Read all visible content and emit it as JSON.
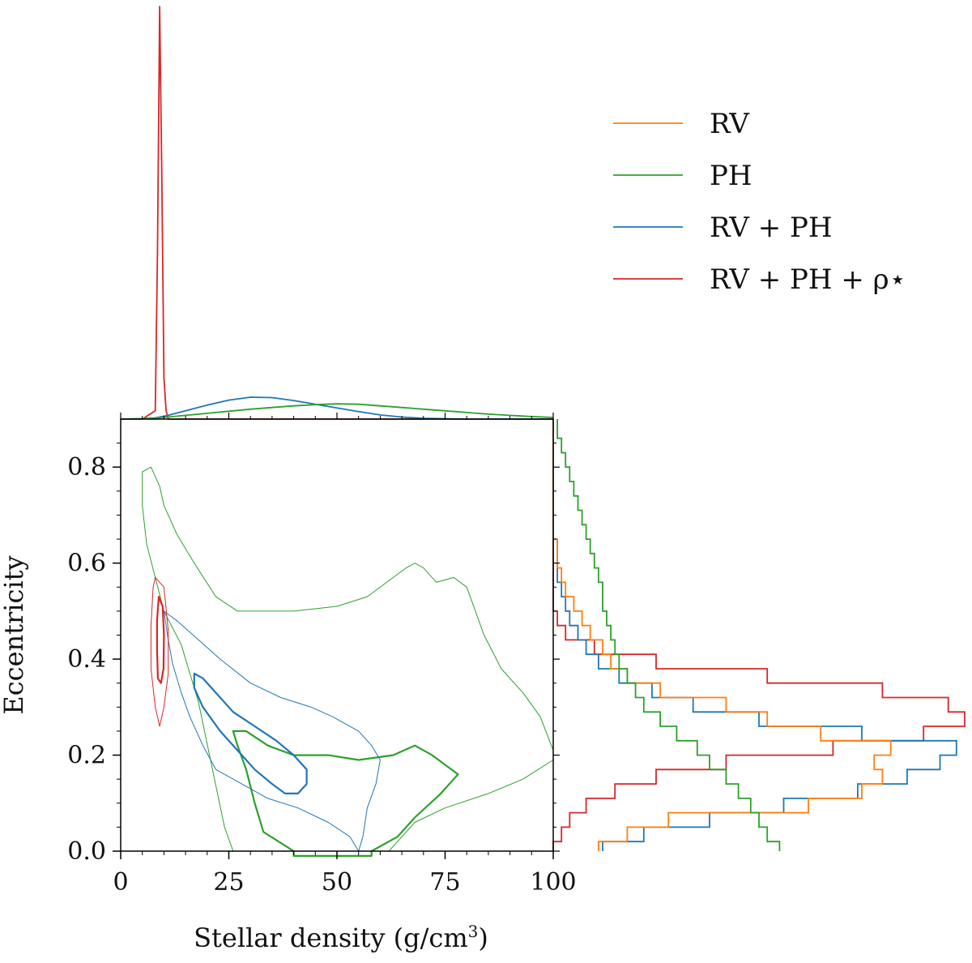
{
  "chart_data": {
    "type": "line",
    "main_panel": {
      "kind": "contour",
      "xlabel": "Stellar density (g/cm",
      "xlabel_sup": "3",
      "xlabel_tail": ")",
      "ylabel": "Eccentricity",
      "xlim": [
        0,
        100
      ],
      "ylim": [
        0,
        0.9
      ],
      "xticks": [
        0,
        25,
        50,
        75,
        100
      ],
      "xtick_labels": [
        "0",
        "25",
        "50",
        "75",
        "100"
      ],
      "yticks": [
        0.0,
        0.2,
        0.4,
        0.6,
        0.8
      ],
      "ytick_labels": [
        "0.0",
        "0.2",
        "0.4",
        "0.6",
        "0.8"
      ],
      "contours": [
        {
          "series": "PH",
          "level": "outer",
          "color": "#2ca02c",
          "points": [
            [
              5,
              0.79
            ],
            [
              7,
              0.8
            ],
            [
              9,
              0.76
            ],
            [
              10,
              0.72
            ],
            [
              13,
              0.66
            ],
            [
              17,
              0.6
            ],
            [
              22,
              0.53
            ],
            [
              27,
              0.5
            ],
            [
              33,
              0.5
            ],
            [
              40,
              0.5
            ],
            [
              50,
              0.51
            ],
            [
              57,
              0.53
            ],
            [
              63,
              0.57
            ],
            [
              66,
              0.59
            ],
            [
              68,
              0.6
            ],
            [
              70,
              0.59
            ],
            [
              73,
              0.56
            ],
            [
              77,
              0.57
            ],
            [
              80,
              0.55
            ],
            [
              84,
              0.45
            ],
            [
              88,
              0.38
            ],
            [
              93,
              0.33
            ],
            [
              97,
              0.28
            ],
            [
              100,
              0.21
            ],
            [
              100,
              0.19
            ],
            [
              93,
              0.15
            ],
            [
              85,
              0.12
            ],
            [
              75,
              0.09
            ],
            [
              68,
              0.06
            ],
            [
              64,
              0.02
            ],
            [
              62,
              0.0
            ],
            [
              50,
              0.0
            ],
            [
              26,
              0.0
            ],
            [
              24,
              0.05
            ],
            [
              21,
              0.18
            ],
            [
              18,
              0.31
            ],
            [
              14,
              0.43
            ],
            [
              10,
              0.5
            ],
            [
              6,
              0.64
            ],
            [
              5,
              0.72
            ],
            [
              5,
              0.79
            ]
          ]
        },
        {
          "series": "PH",
          "level": "inner",
          "color": "#2ca02c",
          "points": [
            [
              26,
              0.25
            ],
            [
              29,
              0.25
            ],
            [
              34,
              0.22
            ],
            [
              40,
              0.2
            ],
            [
              48,
              0.2
            ],
            [
              55,
              0.19
            ],
            [
              63,
              0.2
            ],
            [
              68,
              0.22
            ],
            [
              72,
              0.2
            ],
            [
              78,
              0.16
            ],
            [
              74,
              0.12
            ],
            [
              68,
              0.07
            ],
            [
              64,
              0.03
            ],
            [
              58,
              0.0
            ],
            [
              58,
              -0.01
            ],
            [
              40,
              -0.01
            ],
            [
              40,
              0.0
            ],
            [
              33,
              0.04
            ],
            [
              31,
              0.1
            ],
            [
              29,
              0.17
            ],
            [
              27,
              0.22
            ],
            [
              26,
              0.25
            ]
          ]
        },
        {
          "series": "RV + PH",
          "level": "outer",
          "color": "#1f77b4",
          "points": [
            [
              10,
              0.5
            ],
            [
              13,
              0.48
            ],
            [
              18,
              0.44
            ],
            [
              23,
              0.4
            ],
            [
              30,
              0.35
            ],
            [
              37,
              0.32
            ],
            [
              44,
              0.3
            ],
            [
              49,
              0.28
            ],
            [
              55,
              0.25
            ],
            [
              58,
              0.22
            ],
            [
              60,
              0.19
            ],
            [
              59,
              0.14
            ],
            [
              57,
              0.09
            ],
            [
              56,
              0.03
            ],
            [
              55,
              0.0
            ],
            [
              53,
              0.03
            ],
            [
              48,
              0.06
            ],
            [
              41,
              0.09
            ],
            [
              34,
              0.11
            ],
            [
              28,
              0.14
            ],
            [
              22,
              0.17
            ],
            [
              19,
              0.22
            ],
            [
              16,
              0.28
            ],
            [
              14,
              0.33
            ],
            [
              12,
              0.39
            ],
            [
              11,
              0.44
            ],
            [
              10,
              0.5
            ]
          ]
        },
        {
          "series": "RV + PH",
          "level": "inner",
          "color": "#1f77b4",
          "points": [
            [
              17,
              0.37
            ],
            [
              19,
              0.36
            ],
            [
              22,
              0.33
            ],
            [
              26,
              0.29
            ],
            [
              31,
              0.26
            ],
            [
              36,
              0.23
            ],
            [
              40,
              0.2
            ],
            [
              43,
              0.17
            ],
            [
              43,
              0.14
            ],
            [
              41,
              0.12
            ],
            [
              38,
              0.12
            ],
            [
              35,
              0.14
            ],
            [
              31,
              0.17
            ],
            [
              27,
              0.21
            ],
            [
              23,
              0.25
            ],
            [
              19,
              0.3
            ],
            [
              17,
              0.34
            ],
            [
              17,
              0.37
            ]
          ]
        },
        {
          "series": "RV + PH + ρ⋆",
          "level": "outer",
          "color": "#d62728",
          "points": [
            [
              8,
              0.57
            ],
            [
              10,
              0.55
            ],
            [
              11,
              0.46
            ],
            [
              11,
              0.37
            ],
            [
              10,
              0.3
            ],
            [
              9,
              0.26
            ],
            [
              8,
              0.3
            ],
            [
              7,
              0.38
            ],
            [
              7,
              0.47
            ],
            [
              7.5,
              0.55
            ],
            [
              8,
              0.57
            ]
          ]
        },
        {
          "series": "RV + PH + ρ⋆",
          "level": "inner",
          "color": "#d62728",
          "points": [
            [
              8.8,
              0.53
            ],
            [
              9.7,
              0.51
            ],
            [
              10,
              0.45
            ],
            [
              9.9,
              0.38
            ],
            [
              9.3,
              0.35
            ],
            [
              8.6,
              0.36
            ],
            [
              8.4,
              0.42
            ],
            [
              8.4,
              0.48
            ],
            [
              8.8,
              0.53
            ]
          ]
        }
      ]
    },
    "top_marginal": {
      "kind": "density",
      "x": [
        0,
        5,
        8,
        8.5,
        9,
        9.5,
        10,
        10.5,
        11,
        12,
        15,
        20,
        25,
        30,
        35,
        40,
        45,
        50,
        55,
        60,
        65,
        70,
        75,
        80,
        85,
        90,
        95,
        100
      ],
      "series": [
        {
          "name": "RV + PH + ρ⋆",
          "color": "#d62728",
          "values": [
            0,
            0,
            0.02,
            0.4,
            1.0,
            0.6,
            0.1,
            0.02,
            0,
            0,
            0,
            0,
            0,
            0,
            0,
            0,
            0,
            0,
            0,
            0,
            0,
            0,
            0,
            0,
            0,
            0,
            0,
            0
          ]
        },
        {
          "name": "RV + PH",
          "color": "#1f77b4",
          "values": [
            0,
            0.001,
            0.003,
            0.004,
            0.005,
            0.006,
            0.007,
            0.008,
            0.009,
            0.012,
            0.02,
            0.034,
            0.046,
            0.053,
            0.052,
            0.045,
            0.036,
            0.027,
            0.018,
            0.01,
            0.005,
            0.002,
            0.001,
            0,
            0,
            0,
            0,
            0
          ]
        },
        {
          "name": "PH",
          "color": "#2ca02c",
          "values": [
            0,
            0.001,
            0.002,
            0.003,
            0.003,
            0.004,
            0.004,
            0.005,
            0.005,
            0.006,
            0.009,
            0.014,
            0.019,
            0.024,
            0.028,
            0.032,
            0.035,
            0.037,
            0.036,
            0.032,
            0.028,
            0.024,
            0.02,
            0.016,
            0.012,
            0.009,
            0.006,
            0.004
          ]
        }
      ]
    },
    "right_marginal": {
      "kind": "step-histogram",
      "y_edges": [
        0.0,
        0.02,
        0.05,
        0.08,
        0.11,
        0.14,
        0.17,
        0.2,
        0.23,
        0.26,
        0.29,
        0.32,
        0.35,
        0.38,
        0.41,
        0.44,
        0.47,
        0.5,
        0.53,
        0.56,
        0.59,
        0.62,
        0.65,
        0.68,
        0.71,
        0.74,
        0.77,
        0.8,
        0.83,
        0.86,
        0.9
      ],
      "series": [
        {
          "name": "RV + PH + ρ⋆",
          "color": "#d62728",
          "values": [
            0,
            0.02,
            0.04,
            0.08,
            0.15,
            0.25,
            0.42,
            0.68,
            0.9,
            1.0,
            0.96,
            0.8,
            0.52,
            0.25,
            0.1,
            0.03,
            0.01,
            0,
            0,
            0,
            0,
            0,
            0,
            0,
            0,
            0,
            0,
            0,
            0,
            0
          ]
        },
        {
          "name": "RV + PH",
          "color": "#1f77b4",
          "values": [
            0.12,
            0.22,
            0.38,
            0.56,
            0.74,
            0.86,
            0.94,
            0.98,
            0.75,
            0.5,
            0.34,
            0.24,
            0.16,
            0.11,
            0.08,
            0.06,
            0.04,
            0.03,
            0.02,
            0.01,
            0.01,
            0.01,
            0,
            0,
            0,
            0,
            0,
            0,
            0,
            0
          ]
        },
        {
          "name": "RV",
          "color": "#ff7f0e",
          "values": [
            0.11,
            0.18,
            0.28,
            0.62,
            0.75,
            0.8,
            0.78,
            0.82,
            0.65,
            0.52,
            0.42,
            0.26,
            0.18,
            0.14,
            0.12,
            0.09,
            0.07,
            0.05,
            0.03,
            0.02,
            0.01,
            0.01,
            0,
            0,
            0,
            0,
            0,
            0,
            0,
            0
          ]
        },
        {
          "name": "PH",
          "color": "#2ca02c",
          "values": [
            0.55,
            0.52,
            0.5,
            0.48,
            0.45,
            0.42,
            0.38,
            0.35,
            0.3,
            0.26,
            0.22,
            0.2,
            0.18,
            0.16,
            0.15,
            0.14,
            0.13,
            0.12,
            0.12,
            0.11,
            0.1,
            0.09,
            0.08,
            0.07,
            0.06,
            0.05,
            0.04,
            0.03,
            0.02,
            0.01
          ]
        }
      ]
    },
    "legend": {
      "placement": "top-right",
      "entries": [
        {
          "label": "RV",
          "color": "#ff7f0e"
        },
        {
          "label": "PH",
          "color": "#2ca02c"
        },
        {
          "label": "RV + PH",
          "color": "#1f77b4"
        },
        {
          "label": "RV + PH + ρ⋆",
          "color": "#d62728"
        }
      ]
    }
  }
}
